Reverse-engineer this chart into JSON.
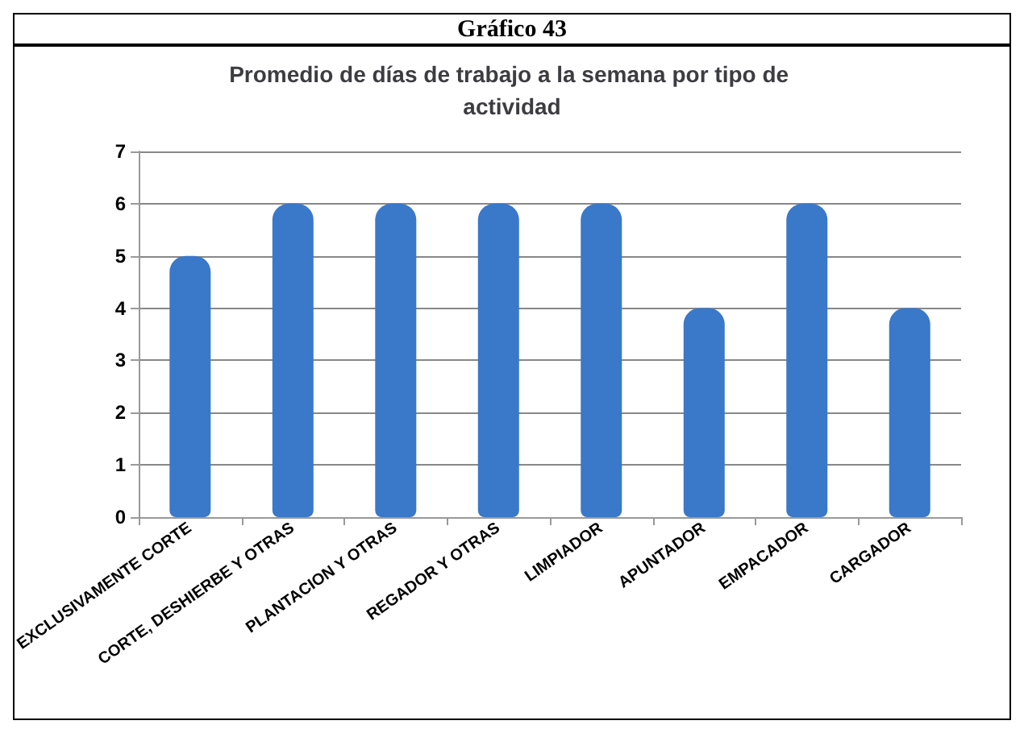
{
  "chart_data": {
    "type": "bar",
    "title": "Promedio de días de trabajo a la semana por tipo de actividad",
    "annotations": [
      "Gráfico 43"
    ],
    "categories": [
      "EXCLUSIVAMENTE CORTE",
      "CORTE, DESHIERBE Y OTRAS",
      "PLANTACION Y OTRAS",
      "REGADOR Y OTRAS",
      "LIMPIADOR",
      "APUNTADOR",
      "EMPACADOR",
      "CARGADOR"
    ],
    "values": [
      5,
      6,
      6,
      6,
      6,
      4,
      6,
      4
    ],
    "color": "#3a78c9",
    "ylim": [
      0,
      7
    ],
    "yticks": [
      0,
      1,
      2,
      3,
      4,
      5,
      6,
      7
    ],
    "grid": "y"
  }
}
